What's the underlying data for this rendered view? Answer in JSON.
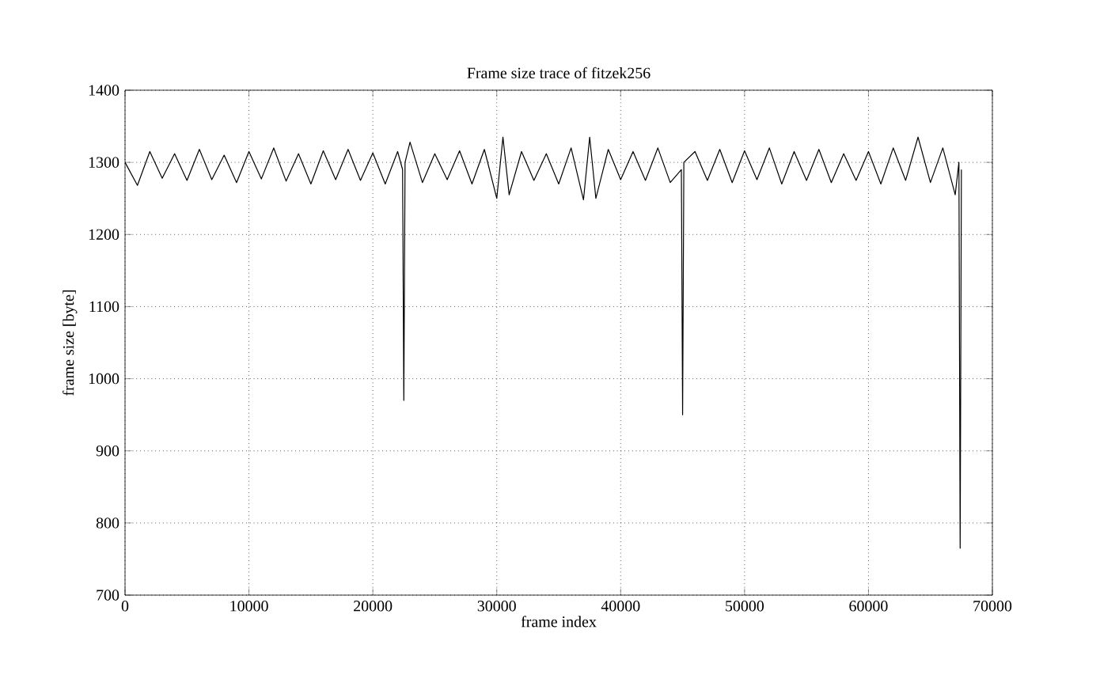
{
  "chart_data": {
    "type": "line",
    "title": "Frame size trace of fitzek256",
    "xlabel": "frame index",
    "ylabel": "frame size [byte]",
    "xlim": [
      0,
      70000
    ],
    "xticks": [
      0,
      10000,
      20000,
      30000,
      40000,
      50000,
      60000,
      70000
    ],
    "ylim": [
      700,
      1400
    ],
    "yticks": [
      700,
      800,
      900,
      1000,
      1100,
      1200,
      1300,
      1400
    ],
    "grid": true,
    "marker": "none",
    "line_style": "solid",
    "x": [
      0,
      1000,
      2000,
      3000,
      4000,
      5000,
      6000,
      7000,
      8000,
      9000,
      10000,
      11000,
      12000,
      13000,
      14000,
      15000,
      16000,
      17000,
      18000,
      19000,
      20000,
      21000,
      22000,
      22400,
      22500,
      22600,
      23000,
      24000,
      25000,
      26000,
      27000,
      28000,
      29000,
      30000,
      30500,
      31000,
      32000,
      33000,
      34000,
      35000,
      36000,
      37000,
      37500,
      38000,
      39000,
      40000,
      41000,
      42000,
      43000,
      44000,
      44900,
      45000,
      45100,
      46000,
      47000,
      48000,
      49000,
      50000,
      51000,
      52000,
      53000,
      54000,
      55000,
      56000,
      57000,
      58000,
      59000,
      60000,
      61000,
      62000,
      63000,
      64000,
      65000,
      66000,
      67000,
      67300,
      67400,
      67500
    ],
    "series": [
      {
        "color": "#000000",
        "values": [
          1300,
          1268,
          1315,
          1278,
          1312,
          1275,
          1318,
          1276,
          1310,
          1272,
          1315,
          1277,
          1320,
          1274,
          1312,
          1270,
          1316,
          1276,
          1318,
          1275,
          1313,
          1270,
          1315,
          1290,
          970,
          1300,
          1328,
          1272,
          1312,
          1276,
          1316,
          1270,
          1318,
          1250,
          1335,
          1255,
          1315,
          1275,
          1312,
          1270,
          1320,
          1248,
          1335,
          1250,
          1318,
          1276,
          1315,
          1275,
          1320,
          1272,
          1290,
          950,
          1300,
          1315,
          1275,
          1318,
          1272,
          1316,
          1276,
          1320,
          1270,
          1315,
          1275,
          1318,
          1272,
          1312,
          1275,
          1315,
          1270,
          1320,
          1275,
          1335,
          1272,
          1320,
          1255,
          1300,
          765,
          1290
        ]
      }
    ]
  }
}
